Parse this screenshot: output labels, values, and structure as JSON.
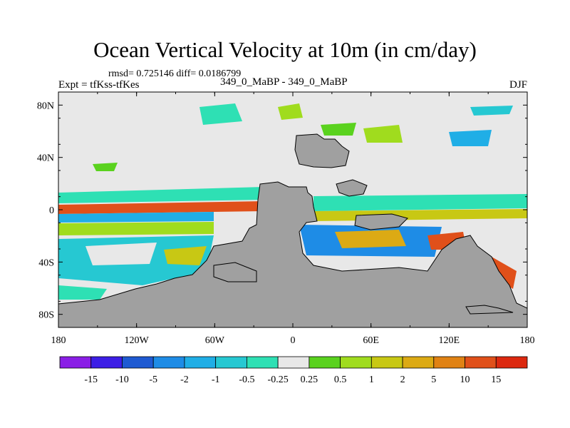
{
  "title": "Ocean Vertical Velocity at 10m (in cm/day)",
  "stats_line": "rmsd= 0.725146 diff= 0.0186799",
  "left_label": "Expt = tfKss-tfKes",
  "center_label": "349_0_MaBP - 349_0_MaBP",
  "right_label": "DJF",
  "y_ticks": [
    {
      "label": "80N",
      "lat": 80
    },
    {
      "label": "40N",
      "lat": 40
    },
    {
      "label": "0",
      "lat": 0
    },
    {
      "label": "40S",
      "lat": -40
    },
    {
      "label": "80S",
      "lat": -80
    }
  ],
  "x_ticks": [
    {
      "label": "180",
      "lon": -180
    },
    {
      "label": "120W",
      "lon": -120
    },
    {
      "label": "60W",
      "lon": -60
    },
    {
      "label": "0",
      "lon": 0
    },
    {
      "label": "60E",
      "lon": 60
    },
    {
      "label": "120E",
      "lon": 120
    },
    {
      "label": "180",
      "lon": 180
    }
  ],
  "colorbar": {
    "labels": [
      "-15",
      "-10",
      "-5",
      "-2",
      "-1",
      "-0.5",
      "-0.25",
      "0.25",
      "0.5",
      "1",
      "2",
      "5",
      "10",
      "15"
    ],
    "colors": [
      "#8a1ee6",
      "#3d1ee6",
      "#1e5ad2",
      "#1e8ce6",
      "#20aee6",
      "#26c8d2",
      "#2ee0b4",
      "#e8e8e8",
      "#5ad21e",
      "#a0dc1e",
      "#c8c814",
      "#dcaa14",
      "#e08214",
      "#e0501a",
      "#dc280f"
    ]
  },
  "colors": {
    "land": "#a0a0a0",
    "neutral": "#e8e8e8",
    "frame": "#000000"
  }
}
